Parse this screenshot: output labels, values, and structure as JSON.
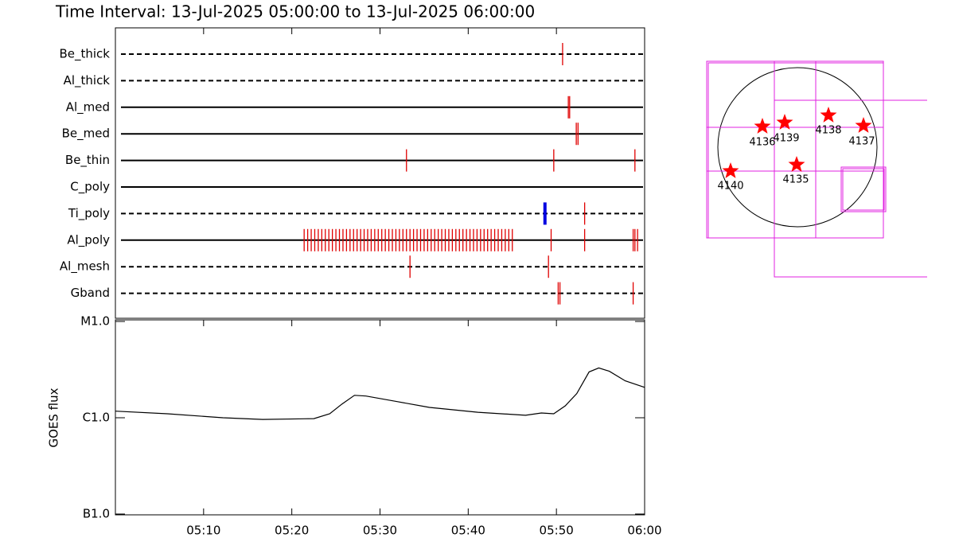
{
  "chart_data": [
    {
      "type": "timeline",
      "title": "Time Interval: 13-Jul-2025 05:00:00 to 13-Jul-2025 06:00:00",
      "xlim": [
        0,
        60
      ],
      "xticks": [
        10,
        20,
        30,
        40,
        50
      ],
      "event_color": "#e00000",
      "alt_event_color": "#0000e0",
      "rows": [
        {
          "name": "Be_thick",
          "style": "dashed",
          "events": [
            50.7
          ]
        },
        {
          "name": "Al_thick",
          "style": "dashed",
          "events": []
        },
        {
          "name": "Al_med",
          "style": "solid",
          "events": [
            51.35,
            51.5
          ]
        },
        {
          "name": "Be_med",
          "style": "solid",
          "events": [
            52.25,
            52.45
          ]
        },
        {
          "name": "Be_thin",
          "style": "solid",
          "events": [
            33.0,
            49.7,
            58.9
          ]
        },
        {
          "name": "C_poly",
          "style": "solid",
          "events": []
        },
        {
          "name": "Ti_poly",
          "style": "dashed",
          "events": [
            53.2
          ],
          "alt_events": [
            48.7
          ]
        },
        {
          "name": "Al_poly",
          "style": "solid",
          "events": [
            21.4,
            21.8,
            22.2,
            22.6,
            23.0,
            23.4,
            23.8,
            24.2,
            24.6,
            25.0,
            25.4,
            25.8,
            26.2,
            26.6,
            27.0,
            27.4,
            27.8,
            28.2,
            28.6,
            29.0,
            29.4,
            29.8,
            30.2,
            30.6,
            31.0,
            31.4,
            31.8,
            32.2,
            32.6,
            33.0,
            33.4,
            33.8,
            34.2,
            34.6,
            35.0,
            35.4,
            35.8,
            36.2,
            36.6,
            37.0,
            37.4,
            37.8,
            38.2,
            38.6,
            39.0,
            39.4,
            39.8,
            40.2,
            40.6,
            41.0,
            41.4,
            41.8,
            42.2,
            42.6,
            43.0,
            43.4,
            43.8,
            44.2,
            44.6,
            45.0,
            49.4,
            53.2,
            58.7,
            58.9,
            59.2
          ]
        },
        {
          "name": "Al_mesh",
          "style": "dashed",
          "events": [
            33.4,
            49.1
          ]
        },
        {
          "name": "Gband",
          "style": "dashed",
          "events": [
            50.2,
            50.4,
            58.7
          ]
        }
      ]
    },
    {
      "type": "line",
      "y_label": "GOES flux",
      "log_scale": true,
      "color": "#000000",
      "xlim": [
        0,
        60
      ],
      "xticks": [
        {
          "value": 10,
          "label": "05:10"
        },
        {
          "value": 20,
          "label": "05:20"
        },
        {
          "value": 30,
          "label": "05:30"
        },
        {
          "value": 40,
          "label": "05:40"
        },
        {
          "value": 50,
          "label": "05:50"
        },
        {
          "value": 60,
          "label": "06:00"
        }
      ],
      "ylim": [
        1e-07,
        1e-05
      ],
      "yticks": [
        {
          "value": 1e-07,
          "label": "B1.0"
        },
        {
          "value": 1e-06,
          "label": "C1.0"
        },
        {
          "value": 1e-05,
          "label": "M1.0"
        }
      ],
      "x": [
        0,
        5.9,
        12.2,
        16.7,
        22.5,
        24.3,
        25.7,
        27.1,
        28.4,
        32.0,
        35.6,
        41.1,
        46.5,
        48.3,
        49.7,
        51.0,
        52.3,
        53.7,
        54.8,
        56.0,
        57.8,
        60.0
      ],
      "values": [
        1.17e-06,
        1.1e-06,
        1e-06,
        9.6e-07,
        9.8e-07,
        1.1e-06,
        1.39e-06,
        1.71e-06,
        1.68e-06,
        1.47e-06,
        1.28e-06,
        1.14e-06,
        1.06e-06,
        1.12e-06,
        1.1e-06,
        1.33e-06,
        1.78e-06,
        2.99e-06,
        3.29e-06,
        3.04e-06,
        2.42e-06,
        2.07e-06
      ]
    },
    {
      "type": "map",
      "labels": [
        "4136",
        "4139",
        "4138",
        "4137",
        "4135",
        "4140"
      ]
    }
  ]
}
